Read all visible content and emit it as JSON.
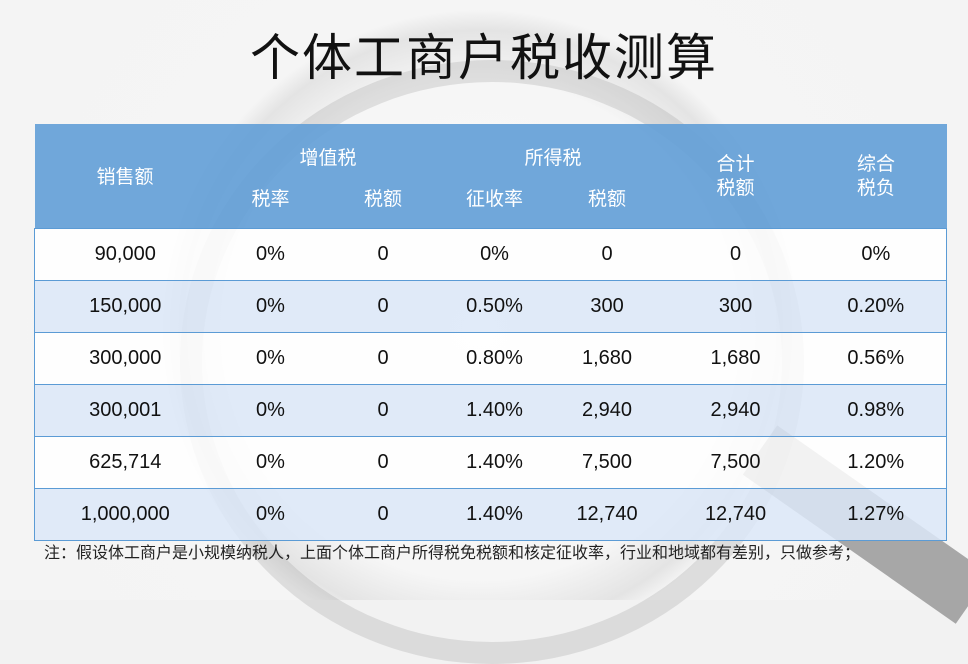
{
  "title": "个体工商户税收测算",
  "header": {
    "sales": "销售额",
    "vat": "增值税",
    "income_tax": "所得税",
    "total_tax": "合计\n税额",
    "overall_burden": "综合\n税负",
    "vat_rate": "税率",
    "vat_amount": "税额",
    "levy_rate": "征收率",
    "income_amount": "税额"
  },
  "rows": [
    [
      "90,000",
      "0%",
      "0",
      "0%",
      "0",
      "0",
      "0%"
    ],
    [
      "150,000",
      "0%",
      "0",
      "0.50%",
      "300",
      "300",
      "0.20%"
    ],
    [
      "300,000",
      "0%",
      "0",
      "0.80%",
      "1,680",
      "1,680",
      "0.56%"
    ],
    [
      "300,001",
      "0%",
      "0",
      "1.40%",
      "2,940",
      "2,940",
      "0.98%"
    ],
    [
      "625,714",
      "0%",
      "0",
      "1.40%",
      "7,500",
      "7,500",
      "1.20%"
    ],
    [
      "1,000,000",
      "0%",
      "0",
      "1.40%",
      "12,740",
      "12,740",
      "1.27%"
    ]
  ],
  "note": "注：假设体工商户是小规模纳税人，上面个体工商户所得税免税额和核定征收率，行业和地域都有差别，只做参考；",
  "colors": {
    "header": "#64a0d7",
    "row_alt": "#dce8f8",
    "border": "#5b9bd5"
  }
}
